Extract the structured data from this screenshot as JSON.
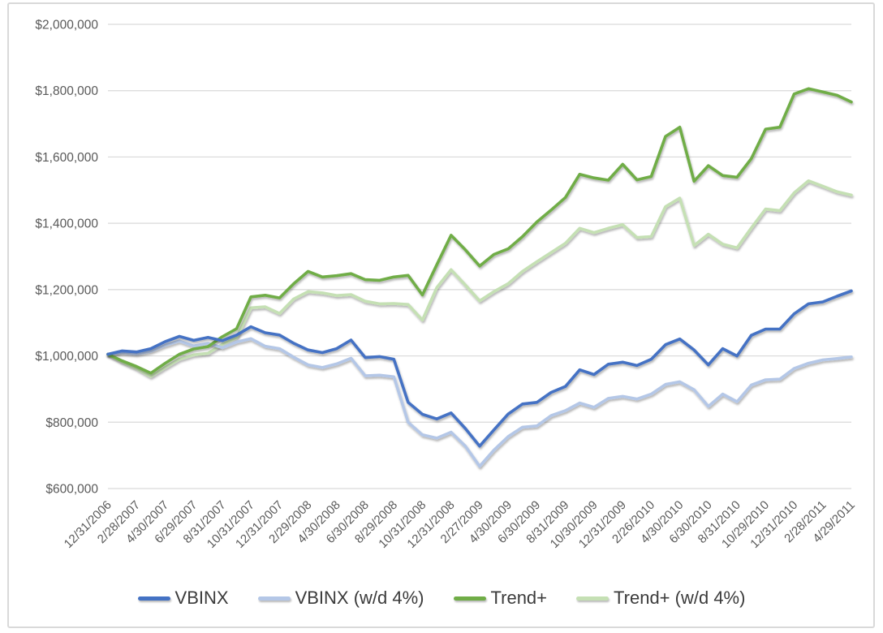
{
  "chart_data": {
    "type": "line",
    "title": "",
    "grid": true,
    "legend_position": "bottom",
    "x": [
      "12/31/2006",
      "1/31/2007",
      "2/28/2007",
      "3/30/2007",
      "4/30/2007",
      "5/31/2007",
      "6/29/2007",
      "7/31/2007",
      "8/31/2007",
      "9/28/2007",
      "10/31/2007",
      "11/30/2007",
      "12/31/2007",
      "1/31/2008",
      "2/29/2008",
      "3/31/2008",
      "4/30/2008",
      "5/30/2008",
      "6/30/2008",
      "7/31/2008",
      "8/29/2008",
      "9/30/2008",
      "10/31/2008",
      "11/28/2008",
      "12/31/2008",
      "1/30/2009",
      "2/27/2009",
      "3/31/2009",
      "4/30/2009",
      "5/29/2009",
      "6/30/2009",
      "7/31/2009",
      "8/31/2009",
      "9/30/2009",
      "10/30/2009",
      "11/30/2009",
      "12/31/2009",
      "1/29/2010",
      "2/26/2010",
      "3/31/2010",
      "4/30/2010",
      "5/28/2010",
      "6/30/2010",
      "7/30/2010",
      "8/31/2010",
      "9/30/2010",
      "10/29/2010",
      "11/30/2010",
      "12/31/2010",
      "1/31/2011",
      "2/28/2011",
      "3/31/2011",
      "4/29/2011"
    ],
    "x_tick_every": 2,
    "y_axis": {
      "min": 600000,
      "max": 2000000,
      "step": 200000,
      "tick_values": [
        2000000,
        1800000,
        1600000,
        1400000,
        1200000,
        1000000,
        800000,
        600000
      ],
      "tick_labels": [
        "$2,000,000",
        "$1,800,000",
        "$1,600,000",
        "$1,400,000",
        "$1,200,000",
        "$1,000,000",
        "$800,000",
        "$600,000"
      ]
    },
    "reference_line": {
      "value": 1000000,
      "color": "#000000"
    },
    "series": [
      {
        "name": "VBINX",
        "color": "#4472C4",
        "values": [
          1005000,
          1015000,
          1012000,
          1022000,
          1043000,
          1059000,
          1047000,
          1056000,
          1046000,
          1063000,
          1088000,
          1070000,
          1063000,
          1038000,
          1018000,
          1010000,
          1022000,
          1048000,
          995000,
          998000,
          990000,
          860000,
          824000,
          810000,
          828000,
          781000,
          728000,
          777000,
          825000,
          855000,
          860000,
          890000,
          908000,
          958000,
          944000,
          975000,
          981000,
          971000,
          990000,
          1034000,
          1051000,
          1018000,
          973000,
          1022000,
          1000000,
          1062000,
          1081000,
          1081000,
          1127000,
          1157000,
          1163000,
          1180000,
          1196000
        ]
      },
      {
        "name": "VBINX (w/d 4%)",
        "color": "#B4C7E7",
        "values": [
          1005000,
          1010000,
          1006000,
          1014000,
          1032000,
          1045000,
          1030000,
          1038000,
          1025000,
          1042000,
          1052000,
          1029000,
          1022000,
          996000,
          973000,
          965000,
          976000,
          993000,
          940000,
          942000,
          937000,
          800000,
          762000,
          752000,
          770000,
          728000,
          667000,
          716000,
          757000,
          785000,
          789000,
          820000,
          835000,
          858000,
          845000,
          872000,
          878000,
          870000,
          885000,
          914000,
          922000,
          898000,
          848000,
          885000,
          862000,
          912000,
          928000,
          930000,
          962000,
          978000,
          988000,
          992000,
          997000
        ]
      },
      {
        "name": "Trend+",
        "color": "#70AD47",
        "values": [
          1005000,
          985000,
          968000,
          948000,
          978000,
          1005000,
          1021000,
          1028000,
          1058000,
          1082000,
          1178000,
          1183000,
          1175000,
          1218000,
          1255000,
          1238000,
          1242000,
          1248000,
          1230000,
          1228000,
          1238000,
          1243000,
          1184000,
          1275000,
          1364000,
          1320000,
          1271000,
          1306000,
          1323000,
          1360000,
          1404000,
          1440000,
          1478000,
          1548000,
          1537000,
          1530000,
          1578000,
          1531000,
          1541000,
          1662000,
          1690000,
          1527000,
          1574000,
          1544000,
          1539000,
          1595000,
          1684000,
          1690000,
          1790000,
          1806000,
          1796000,
          1786000,
          1766000
        ]
      },
      {
        "name": "Trend+ (w/d 4%)",
        "color": "#C5E0B4",
        "values": [
          1005000,
          982000,
          962000,
          938000,
          965000,
          990000,
          1003000,
          1008000,
          1035000,
          1055000,
          1145000,
          1148000,
          1128000,
          1172000,
          1194000,
          1190000,
          1182000,
          1185000,
          1165000,
          1157000,
          1158000,
          1155000,
          1108000,
          1206000,
          1260000,
          1214000,
          1166000,
          1194000,
          1218000,
          1255000,
          1284000,
          1312000,
          1340000,
          1385000,
          1372000,
          1385000,
          1396000,
          1357000,
          1360000,
          1450000,
          1476000,
          1333000,
          1367000,
          1337000,
          1326000,
          1386000,
          1443000,
          1438000,
          1492000,
          1528000,
          1512000,
          1495000,
          1485000
        ]
      }
    ]
  },
  "styles": {
    "gridline_color": "#D9D9D9",
    "frame_color": "#D9D9D9",
    "tick_label_color": "#595959",
    "legend_text_color": "#3b3b3b",
    "background": "#ffffff"
  }
}
